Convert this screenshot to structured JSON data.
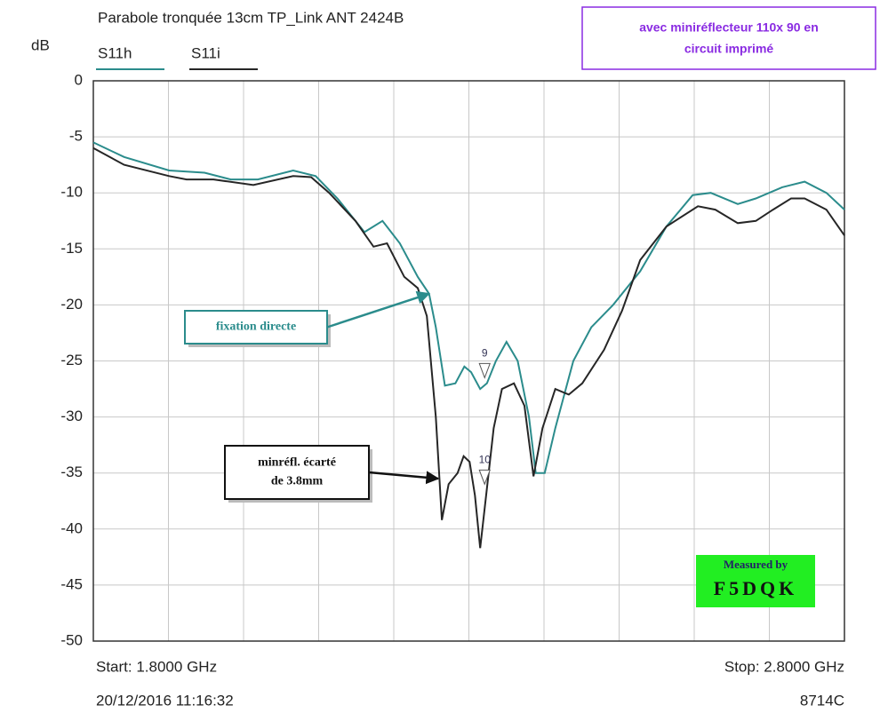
{
  "chart_data": {
    "type": "line",
    "title": "Parabole tronquée 13cm TP_Link ANT 2424B",
    "ylabel": "dB",
    "xlim": [
      1.8,
      2.8
    ],
    "xticks": [
      1.8,
      1.9,
      2.0,
      2.1,
      2.2,
      2.3,
      2.4,
      2.5,
      2.6,
      2.7,
      2.8
    ],
    "ylim": [
      -50,
      0
    ],
    "yticks": [
      0,
      -5,
      -10,
      -15,
      -20,
      -25,
      -30,
      -35,
      -40,
      -45,
      -50
    ],
    "grid": true,
    "series": [
      {
        "name": "S11h",
        "color": "#2b8c8c",
        "x": [
          1.8,
          1.841,
          1.901,
          1.948,
          1.983,
          2.019,
          2.066,
          2.096,
          2.125,
          2.161,
          2.185,
          2.208,
          2.232,
          2.247,
          2.256,
          2.268,
          2.282,
          2.294,
          2.303,
          2.315,
          2.324,
          2.336,
          2.35,
          2.365,
          2.38,
          2.389,
          2.401,
          2.415,
          2.439,
          2.463,
          2.492,
          2.528,
          2.563,
          2.598,
          2.622,
          2.658,
          2.682,
          2.717,
          2.747,
          2.776,
          2.8
        ],
        "values": [
          -5.5,
          -6.8,
          -8.0,
          -8.2,
          -8.8,
          -8.8,
          -8.0,
          -8.5,
          -10.5,
          -13.5,
          -12.5,
          -14.5,
          -17.5,
          -19,
          -22,
          -27.2,
          -27,
          -25.5,
          -26,
          -27.5,
          -27,
          -25,
          -23.3,
          -25,
          -30,
          -35,
          -35,
          -31,
          -25,
          -22,
          -20,
          -17,
          -13,
          -10.2,
          -10,
          -11,
          -10.5,
          -9.5,
          -9,
          -10,
          -11.5
        ]
      },
      {
        "name": "S11i",
        "color": "#262626",
        "x": [
          1.8,
          1.841,
          1.901,
          1.924,
          1.96,
          2.013,
          2.066,
          2.09,
          2.114,
          2.149,
          2.173,
          2.191,
          2.214,
          2.232,
          2.244,
          2.256,
          2.264,
          2.273,
          2.285,
          2.293,
          2.301,
          2.308,
          2.315,
          2.323,
          2.333,
          2.344,
          2.36,
          2.374,
          2.386,
          2.398,
          2.415,
          2.433,
          2.451,
          2.48,
          2.504,
          2.528,
          2.563,
          2.605,
          2.628,
          2.658,
          2.682,
          2.705,
          2.729,
          2.747,
          2.776,
          2.8
        ],
        "values": [
          -6,
          -7.5,
          -8.5,
          -8.8,
          -8.8,
          -9.3,
          -8.5,
          -8.6,
          -10,
          -12.5,
          -14.8,
          -14.5,
          -17.5,
          -18.5,
          -21,
          -30,
          -39.2,
          -36,
          -35,
          -33.5,
          -34,
          -37,
          -41.7,
          -37,
          -31,
          -27.5,
          -27,
          -29,
          -35.3,
          -31,
          -27.5,
          -28,
          -27,
          -24,
          -20.5,
          -16,
          -13,
          -11.2,
          -11.5,
          -12.7,
          -12.5,
          -11.5,
          -10.5,
          -10.5,
          -11.5,
          -13.8
        ]
      }
    ],
    "markers": [
      {
        "label": "9",
        "x": 2.321,
        "value": -26.5
      },
      {
        "label": "10",
        "x": 2.321,
        "value": -36
      }
    ],
    "annotations": [
      {
        "lines": [
          "fixation directe"
        ],
        "x": 2.247,
        "value": -19
      },
      {
        "lines": [
          "minréfl. écarté",
          "de 3.8mm"
        ],
        "x": 2.259,
        "value": -35.5
      }
    ],
    "note": [
      "avec miniréflecteur 110x 90 en",
      "circuit imprimé"
    ],
    "stamp": [
      "Measured by",
      "F5DQK"
    ],
    "start": "Start: 1.8000 GHz",
    "stop": "Stop: 2.8000 GHz",
    "datetime": "20/12/2016 11:16:32",
    "model": "8714C"
  }
}
